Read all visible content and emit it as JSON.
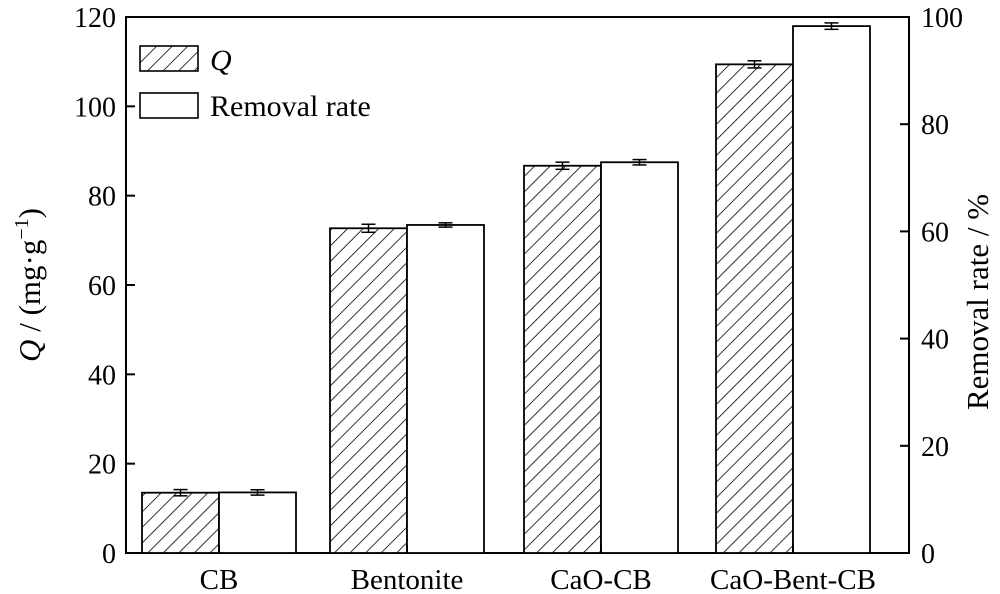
{
  "chart_data": {
    "type": "bar",
    "categories": [
      "CB",
      "Bentonite",
      "CaO-CB",
      "CaO-Bent-CB"
    ],
    "series": [
      {
        "name": "Q",
        "axis": "left",
        "pattern": "hatched",
        "values": [
          13.5,
          72.7,
          86.7,
          109.4
        ],
        "errors": [
          0.7,
          0.9,
          0.8,
          0.8
        ]
      },
      {
        "name": "Removal rate",
        "axis": "right",
        "pattern": "plain",
        "values": [
          11.3,
          61.2,
          72.9,
          98.3
        ],
        "errors": [
          0.5,
          0.4,
          0.5,
          0.6
        ]
      }
    ],
    "y_left": {
      "label_italic": "Q",
      "label_rest": " / (mg·g",
      "label_sup": "−1",
      "label_close": ")",
      "range": [
        0,
        120
      ],
      "ticks": [
        "0",
        "20",
        "40",
        "60",
        "80",
        "100",
        "120"
      ]
    },
    "y_right": {
      "label": "Removal rate / %",
      "range": [
        0,
        100
      ],
      "ticks": [
        "0",
        "20",
        "40",
        "60",
        "80",
        "100"
      ]
    },
    "legend_position": "top-left",
    "grid": false,
    "colors": {
      "stroke": "#000000",
      "fill": "#ffffff"
    }
  }
}
